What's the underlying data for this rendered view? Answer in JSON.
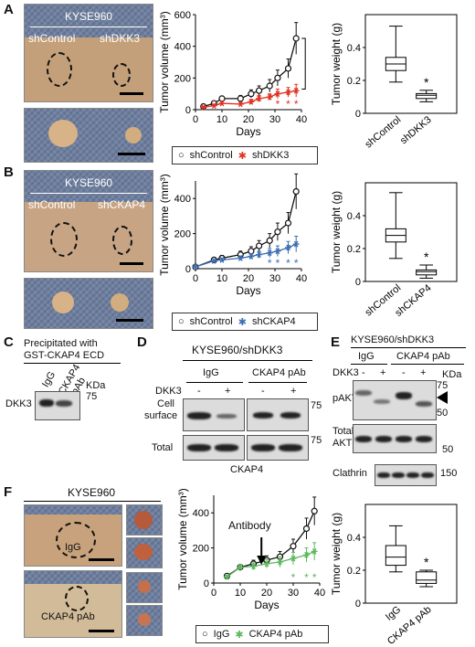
{
  "panels": {
    "A": {
      "letter": "A",
      "photo_title": "KYSE960",
      "photo_label_left": "shControl",
      "photo_label_right": "shDKK3",
      "legend": [
        "shControl",
        "shDKK3"
      ],
      "box_categories": [
        "shControl",
        "shDKK3"
      ]
    },
    "B": {
      "letter": "B",
      "photo_title": "KYSE960",
      "photo_label_left": "shControl",
      "photo_label_right": "shCKAP4",
      "legend": [
        "shControl",
        "shCKAP4"
      ],
      "box_categories": [
        "shControl",
        "shCKAP4"
      ]
    },
    "C": {
      "letter": "C",
      "title_line1": "Precipitated with",
      "title_line2": "GST-CKAP4 ECD",
      "lane1": "IgG",
      "lane2_line1": "CKAP4",
      "lane2_line2": "pAb",
      "kda": "KDa",
      "marker": "75",
      "row_label": "DKK3"
    },
    "D": {
      "letter": "D",
      "title": "KYSE960/shDKK3",
      "group1": "IgG",
      "group2": "CKAP4 pAb",
      "dkk3_label": "DKK3",
      "minus": "-",
      "plus": "+",
      "row1_line1": "Cell",
      "row1_line2": "surface",
      "row2": "Total",
      "marker": "75",
      "bottom_label": "CKAP4"
    },
    "E": {
      "letter": "E",
      "title": "KYSE960/shDKK3",
      "group1": "IgG",
      "group2": "CKAP4 pAb",
      "dkk3_label": "DKK3",
      "minus": "-",
      "plus": "+",
      "kda": "KDa",
      "row1": "pAKT",
      "row2_line1": "Total",
      "row2_line2": "AKT",
      "row3": "Clathrin",
      "marker_75": "75",
      "marker_50a": "50",
      "marker_50b": "50",
      "marker_150": "150"
    },
    "F": {
      "letter": "F",
      "photo_title": "KYSE960",
      "label_top": "IgG",
      "label_bottom": "CKAP4 pAb",
      "annotation": "Antibody",
      "legend": [
        "IgG",
        "CKAP4 pAb"
      ],
      "box_categories": [
        "IgG",
        "CKAP4 pAb"
      ]
    }
  },
  "colors": {
    "control": "#111111",
    "shDKK3": "#e0301e",
    "shCKAP4": "#3b6db3",
    "ckap4_pab": "#5cb85c"
  },
  "chart_data": [
    {
      "id": "A-volume",
      "type": "line",
      "xlabel": "Days",
      "ylabel": "Tumor volume (mm³)",
      "xlim": [
        0,
        40
      ],
      "ylim": [
        0,
        600
      ],
      "xticks": [
        0,
        10,
        20,
        30,
        40
      ],
      "yticks": [
        0,
        200,
        400,
        600
      ],
      "x": [
        3,
        7,
        10,
        17,
        21,
        24,
        28,
        31,
        35,
        38
      ],
      "series": [
        {
          "name": "shControl",
          "values": [
            20,
            40,
            70,
            70,
            100,
            120,
            150,
            200,
            260,
            450
          ],
          "err": [
            5,
            10,
            15,
            20,
            25,
            30,
            40,
            50,
            60,
            100
          ]
        },
        {
          "name": "shDKK3",
          "values": [
            15,
            25,
            40,
            35,
            50,
            70,
            80,
            100,
            110,
            120
          ],
          "err": [
            5,
            8,
            10,
            10,
            15,
            20,
            20,
            30,
            30,
            40
          ]
        }
      ],
      "significance": [
        "*",
        "*",
        "*"
      ]
    },
    {
      "id": "A-weight",
      "type": "box",
      "ylabel": "Tumor weight (g)",
      "ylim": [
        0,
        0.6
      ],
      "yticks": [
        0,
        0.2,
        0.4
      ],
      "categories": [
        "shControl",
        "shDKK3"
      ],
      "boxes": [
        {
          "min": 0.19,
          "q1": 0.26,
          "median": 0.3,
          "q3": 0.34,
          "max": 0.53
        },
        {
          "min": 0.07,
          "q1": 0.09,
          "median": 0.11,
          "q3": 0.12,
          "max": 0.14
        }
      ],
      "significance": "*"
    },
    {
      "id": "B-volume",
      "type": "line",
      "xlabel": "Days",
      "ylabel": "Tumor volume (mm³)",
      "xlim": [
        0,
        40
      ],
      "ylim": [
        0,
        500
      ],
      "xticks": [
        0,
        10,
        20,
        30,
        40
      ],
      "yticks": [
        0,
        200,
        400
      ],
      "x": [
        0,
        7,
        10,
        17,
        21,
        24,
        28,
        31,
        35,
        38
      ],
      "series": [
        {
          "name": "shControl",
          "values": [
            10,
            50,
            60,
            80,
            100,
            130,
            160,
            210,
            260,
            440
          ],
          "err": [
            5,
            10,
            15,
            20,
            25,
            30,
            40,
            50,
            60,
            100
          ]
        },
        {
          "name": "shCKAP4",
          "values": [
            10,
            45,
            50,
            60,
            70,
            80,
            90,
            100,
            120,
            140
          ],
          "err": [
            5,
            8,
            10,
            12,
            15,
            20,
            25,
            30,
            35,
            45
          ]
        }
      ],
      "significance": [
        "*",
        "*",
        "*",
        "*"
      ]
    },
    {
      "id": "B-weight",
      "type": "box",
      "ylabel": "Tumor weight (g)",
      "ylim": [
        0,
        0.6
      ],
      "yticks": [
        0,
        0.2,
        0.4
      ],
      "categories": [
        "shControl",
        "shCKAP4"
      ],
      "boxes": [
        {
          "min": 0.14,
          "q1": 0.24,
          "median": 0.28,
          "q3": 0.32,
          "max": 0.54
        },
        {
          "min": 0.02,
          "q1": 0.04,
          "median": 0.06,
          "q3": 0.07,
          "max": 0.1
        }
      ],
      "significance": "*"
    },
    {
      "id": "F-volume",
      "type": "line",
      "xlabel": "Days",
      "ylabel": "Tumor volume (mm³)",
      "xlim": [
        0,
        40
      ],
      "ylim": [
        0,
        500
      ],
      "xticks": [
        0,
        10,
        20,
        30,
        40
      ],
      "yticks": [
        0,
        200,
        400
      ],
      "x": [
        5,
        10,
        15,
        20,
        25,
        30,
        35,
        38
      ],
      "series": [
        {
          "name": "IgG",
          "values": [
            40,
            90,
            110,
            130,
            150,
            210,
            310,
            410
          ],
          "err": [
            10,
            15,
            20,
            25,
            30,
            40,
            60,
            80
          ]
        },
        {
          "name": "CKAP4 pAb",
          "values": [
            35,
            90,
            95,
            110,
            120,
            140,
            160,
            180
          ],
          "err": [
            10,
            15,
            20,
            25,
            30,
            35,
            40,
            50
          ]
        }
      ],
      "arrow_day": 18,
      "significance": [
        "*",
        "*",
        "*"
      ]
    },
    {
      "id": "F-weight",
      "type": "box",
      "ylabel": "Tumor weight (g)",
      "ylim": [
        0,
        0.6
      ],
      "yticks": [
        0,
        0.2,
        0.4
      ],
      "categories": [
        "IgG",
        "CKAP4 pAb"
      ],
      "boxes": [
        {
          "min": 0.19,
          "q1": 0.23,
          "median": 0.28,
          "q3": 0.35,
          "max": 0.47
        },
        {
          "min": 0.1,
          "q1": 0.12,
          "median": 0.14,
          "q3": 0.19,
          "max": 0.2
        }
      ],
      "significance": "*"
    }
  ]
}
